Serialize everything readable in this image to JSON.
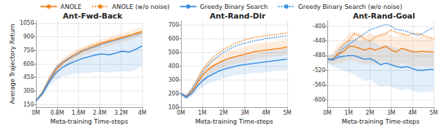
{
  "chart_data": [
    {
      "type": "line",
      "title": "Ant-Fwd-Back",
      "xlabel": "Meta-training Time-steps",
      "ylabel": "Average Trajectory Return",
      "legend": "top",
      "grid": true,
      "x": [
        0,
        0.25,
        0.5,
        0.75,
        1,
        1.25,
        1.5,
        1.75,
        2,
        2.25,
        2.5,
        2.75,
        3,
        3.25,
        3.5,
        3.75,
        4
      ],
      "xlim": [
        0,
        4
      ],
      "xticks": [
        {
          "value": 0,
          "label": "0M"
        },
        {
          "value": 0.8,
          "label": "0.8M"
        },
        {
          "value": 1.6,
          "label": "1.6M"
        },
        {
          "value": 2.4,
          "label": "2.4M"
        },
        {
          "value": 3.2,
          "label": "3.2M"
        },
        {
          "value": 4,
          "label": "4M"
        }
      ],
      "ylim": [
        120,
        1080
      ],
      "yticks": [
        150,
        300,
        450,
        600,
        750,
        900,
        1050
      ],
      "series": [
        {
          "name": "ANOLE",
          "color": "#f5841f",
          "line_style": "solid",
          "values": [
            190,
            280,
            420,
            530,
            610,
            660,
            700,
            740,
            770,
            800,
            830,
            850,
            870,
            890,
            910,
            940,
            960
          ],
          "lower": [
            170,
            250,
            380,
            480,
            560,
            610,
            650,
            690,
            720,
            750,
            780,
            800,
            820,
            840,
            860,
            890,
            910
          ],
          "upper": [
            210,
            310,
            460,
            580,
            660,
            710,
            750,
            790,
            820,
            850,
            880,
            900,
            920,
            940,
            960,
            990,
            1010
          ]
        },
        {
          "name": "ANOLE (w/o noise)",
          "color": "#f5841f",
          "line_style": "dotted",
          "values": [
            190,
            290,
            440,
            560,
            620,
            670,
            720,
            760,
            790,
            820,
            840,
            860,
            880,
            900,
            920,
            930,
            950
          ]
        },
        {
          "name": "Greedy Binary Search",
          "color": "#3b8ee0",
          "line_style": "solid",
          "values": [
            190,
            270,
            400,
            500,
            560,
            600,
            630,
            660,
            680,
            700,
            710,
            700,
            720,
            740,
            730,
            760,
            800
          ],
          "lower": [
            170,
            240,
            350,
            420,
            460,
            480,
            490,
            500,
            500,
            510,
            510,
            500,
            510,
            520,
            510,
            540,
            580
          ],
          "upper": [
            210,
            300,
            450,
            580,
            640,
            690,
            720,
            760,
            790,
            810,
            830,
            840,
            860,
            880,
            890,
            910,
            930
          ]
        },
        {
          "name": "Greedy Binary Search (w/o noise)",
          "color": "#3b8ee0",
          "line_style": "dotted",
          "values": [
            190,
            285,
            430,
            550,
            610,
            660,
            700,
            740,
            770,
            790,
            820,
            840,
            860,
            880,
            900,
            920,
            940
          ]
        }
      ]
    },
    {
      "type": "line",
      "title": "Ant-Rand-Dir",
      "xlabel": "Meta-training Time-steps",
      "legend": "top",
      "grid": true,
      "x": [
        0,
        0.25,
        0.5,
        0.75,
        1,
        1.25,
        1.5,
        1.75,
        2,
        2.25,
        2.5,
        2.75,
        3,
        3.25,
        3.5,
        3.75,
        4,
        4.25,
        4.5,
        4.75,
        5
      ],
      "xlim": [
        0,
        5
      ],
      "xticks": [
        {
          "value": 0,
          "label": "0M"
        },
        {
          "value": 1,
          "label": "1M"
        },
        {
          "value": 2,
          "label": "2M"
        },
        {
          "value": 3,
          "label": "3M"
        },
        {
          "value": 4,
          "label": "4M"
        },
        {
          "value": 5,
          "label": "5M"
        }
      ],
      "ylim": [
        100,
        730
      ],
      "yticks": [
        100,
        200,
        300,
        400,
        500,
        600,
        700
      ],
      "series": [
        {
          "name": "ANOLE",
          "color": "#f5841f",
          "line_style": "solid",
          "values": [
            200,
            175,
            215,
            270,
            330,
            370,
            400,
            420,
            440,
            455,
            465,
            475,
            485,
            495,
            505,
            510,
            515,
            520,
            525,
            530,
            540
          ],
          "lower": [
            185,
            160,
            190,
            235,
            285,
            320,
            350,
            370,
            390,
            400,
            410,
            420,
            430,
            440,
            450,
            455,
            460,
            465,
            470,
            475,
            485
          ],
          "upper": [
            215,
            190,
            240,
            305,
            375,
            420,
            450,
            470,
            490,
            510,
            520,
            530,
            540,
            550,
            560,
            565,
            570,
            575,
            580,
            585,
            595
          ]
        },
        {
          "name": "ANOLE (w/o noise)",
          "color": "#f5841f",
          "line_style": "dotted",
          "values": [
            200,
            180,
            230,
            300,
            370,
            420,
            460,
            490,
            520,
            540,
            560,
            575,
            590,
            600,
            610,
            615,
            620,
            625,
            630,
            635,
            640
          ]
        },
        {
          "name": "Greedy Binary Search",
          "color": "#3b8ee0",
          "line_style": "solid",
          "values": [
            200,
            170,
            200,
            250,
            290,
            320,
            340,
            360,
            375,
            385,
            395,
            405,
            410,
            415,
            420,
            425,
            430,
            435,
            440,
            445,
            450
          ],
          "lower": [
            185,
            155,
            175,
            215,
            245,
            270,
            285,
            300,
            310,
            320,
            330,
            335,
            340,
            345,
            350,
            350,
            355,
            360,
            365,
            365,
            370
          ],
          "upper": [
            215,
            185,
            225,
            285,
            335,
            370,
            395,
            420,
            440,
            450,
            460,
            475,
            480,
            485,
            490,
            500,
            505,
            510,
            515,
            525,
            530
          ]
        },
        {
          "name": "Greedy Binary Search (w/o noise)",
          "color": "#3b8ee0",
          "line_style": "dotted",
          "values": [
            200,
            180,
            230,
            290,
            350,
            400,
            440,
            470,
            500,
            520,
            540,
            555,
            565,
            575,
            585,
            590,
            600,
            605,
            610,
            615,
            620
          ]
        }
      ]
    },
    {
      "type": "line",
      "title": "Ant-Rand-Goal",
      "xlabel": "Meta-training Time-steps",
      "legend": "top",
      "grid": true,
      "x": [
        0,
        0.25,
        0.5,
        0.75,
        1,
        1.25,
        1.5,
        1.75,
        2,
        2.25,
        2.5,
        2.75,
        3,
        3.25,
        3.5,
        3.75,
        4,
        4.25,
        4.5,
        4.75,
        5
      ],
      "xlim": [
        0,
        5
      ],
      "xticks": [
        {
          "value": 0,
          "label": "0M"
        },
        {
          "value": 1,
          "label": "1M"
        },
        {
          "value": 2,
          "label": "2M"
        },
        {
          "value": 3,
          "label": "3M"
        },
        {
          "value": 4,
          "label": "4M"
        },
        {
          "value": 5,
          "label": "5M"
        }
      ],
      "ylim": [
        -620,
        -385
      ],
      "yticks": [
        -600,
        -560,
        -520,
        -480,
        -440,
        -400
      ],
      "series": [
        {
          "name": "ANOLE",
          "color": "#f5841f",
          "line_style": "solid",
          "values": [
            -490,
            -490,
            -475,
            -470,
            -455,
            -455,
            -460,
            -465,
            -460,
            -465,
            -460,
            -455,
            -465,
            -470,
            -460,
            -465,
            -470,
            -470,
            -468,
            -470,
            -470
          ],
          "lower": [
            -500,
            -505,
            -500,
            -500,
            -490,
            -495,
            -500,
            -505,
            -500,
            -505,
            -500,
            -495,
            -505,
            -510,
            -500,
            -505,
            -510,
            -510,
            -508,
            -510,
            -510
          ],
          "upper": [
            -480,
            -475,
            -450,
            -440,
            -420,
            -415,
            -420,
            -425,
            -420,
            -425,
            -420,
            -415,
            -425,
            -430,
            -420,
            -425,
            -430,
            -430,
            -428,
            -430,
            -430
          ]
        },
        {
          "name": "ANOLE (w/o noise)",
          "color": "#f5841f",
          "line_style": "dotted",
          "values": [
            -490,
            -492,
            -470,
            -450,
            -440,
            -420,
            -425,
            -435,
            -440,
            -430,
            -425,
            -420,
            -410,
            -418,
            -420,
            -425,
            -420,
            -420,
            -425,
            -430,
            -435
          ]
        },
        {
          "name": "Greedy Binary Search",
          "color": "#3b8ee0",
          "line_style": "solid",
          "values": [
            -490,
            -492,
            -485,
            -482,
            -480,
            -480,
            -485,
            -490,
            -488,
            -495,
            -505,
            -500,
            -505,
            -510,
            -512,
            -510,
            -515,
            -520,
            -520,
            -518,
            -518
          ],
          "lower": [
            -500,
            -510,
            -515,
            -520,
            -525,
            -530,
            -540,
            -550,
            -545,
            -555,
            -565,
            -560,
            -565,
            -570,
            -575,
            -570,
            -575,
            -580,
            -580,
            -578,
            -578
          ],
          "upper": [
            -480,
            -475,
            -460,
            -450,
            -440,
            -435,
            -440,
            -440,
            -438,
            -445,
            -455,
            -450,
            -455,
            -460,
            -460,
            -460,
            -465,
            -470,
            -470,
            -468,
            -468
          ]
        },
        {
          "name": "Greedy Binary Search (w/o noise)",
          "color": "#3b8ee0",
          "line_style": "dotted",
          "values": [
            -490,
            -488,
            -480,
            -460,
            -450,
            -440,
            -430,
            -420,
            -410,
            -405,
            -400,
            -395,
            -400,
            -410,
            -410,
            -415,
            -420,
            -425,
            -420,
            -410,
            -405
          ]
        }
      ]
    }
  ]
}
